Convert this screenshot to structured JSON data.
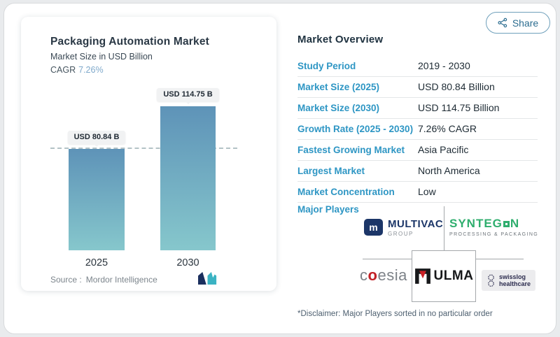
{
  "colors": {
    "accent_blue": "#2e96c4",
    "heading_navy": "#1f3240",
    "bar_gradient_top": "#5e93b8",
    "bar_gradient_bottom": "#86c7cc",
    "cagr_value_blue": "#7fa9cb",
    "share_blue": "#2c6d90",
    "syntegon_green": "#2fae6e",
    "multivac_navy": "#1c3668",
    "ulma_red": "#cb2026",
    "coesia_red": "#c22026"
  },
  "share_button": {
    "label": "Share"
  },
  "chart_panel": {
    "title": "Packaging Automation Market",
    "subtitle": "Market Size in USD Billion",
    "cagr_label": "CAGR",
    "cagr_value": "7.26%",
    "source_label": "Source :",
    "source_value": "Mordor Intelligence"
  },
  "chart_data": {
    "type": "bar",
    "title": "Packaging Automation Market",
    "ylabel": "Market Size in USD Billion",
    "categories": [
      "2025",
      "2030"
    ],
    "values": [
      80.84,
      114.75
    ],
    "bar_labels": [
      "USD 80.84 B",
      "USD 114.75 B"
    ],
    "unit": "USD Billion",
    "ylim": [
      0,
      114.75
    ],
    "reference_line": 80.84,
    "grid": false,
    "legend": false
  },
  "overview": {
    "title": "Market Overview",
    "rows": [
      {
        "label": "Study Period",
        "value": "2019 - 2030"
      },
      {
        "label": "Market Size (2025)",
        "value": "USD 80.84 Billion"
      },
      {
        "label": "Market Size (2030)",
        "value": "USD 114.75 Billion"
      },
      {
        "label": "Growth Rate (2025 - 2030)",
        "value": "7.26% CAGR"
      },
      {
        "label": "Fastest Growing Market",
        "value": "Asia Pacific"
      },
      {
        "label": "Largest Market",
        "value": "North America"
      },
      {
        "label": "Market Concentration",
        "value": "Low"
      }
    ],
    "major_players_label": "Major Players",
    "players": {
      "multivac": {
        "name": "MULTIVAC",
        "tagline": "GROUP",
        "monogram": "m"
      },
      "syntegon": {
        "name": "SYNTEGON",
        "prefix": "SYNTEG",
        "suffix": "N",
        "tagline": "PROCESSING & PACKAGING"
      },
      "coesia": {
        "name": "coesia",
        "prefix": "c",
        "accent": "o",
        "suffix": "esia"
      },
      "ulma": {
        "name": "ULMA"
      },
      "swisslog": {
        "line1": "swisslog",
        "line2": "healthcare"
      }
    },
    "disclaimer": "*Disclaimer: Major Players sorted in no particular order"
  }
}
